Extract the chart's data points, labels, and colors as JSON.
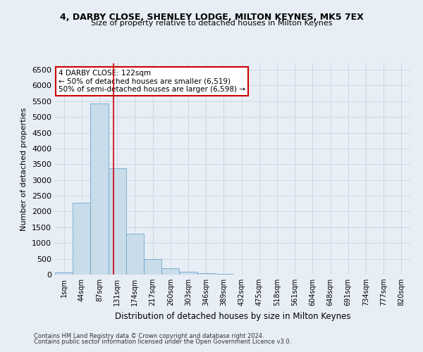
{
  "title1": "4, DARBY CLOSE, SHENLEY LODGE, MILTON KEYNES, MK5 7EX",
  "title2": "Size of property relative to detached houses in Milton Keynes",
  "xlabel": "Distribution of detached houses by size in Milton Keynes",
  "ylabel": "Number of detached properties",
  "footer1": "Contains HM Land Registry data © Crown copyright and database right 2024.",
  "footer2": "Contains public sector information licensed under the Open Government Licence v3.0.",
  "annotation_title": "4 DARBY CLOSE: 122sqm",
  "annotation_line1": "← 50% of detached houses are smaller (6,519)",
  "annotation_line2": "50% of semi-detached houses are larger (6,598) →",
  "property_size_sqm": 122,
  "bar_color": "#c9dcea",
  "bar_edge_color": "#5a9ec9",
  "vline_color": "#cc0000",
  "grid_color": "#c8d4e0",
  "bg_color": "#e8eef5",
  "annotation_box_color": "#ffffff",
  "annotation_box_edge": "#cc0000",
  "bin_edges": [
    1,
    44,
    87,
    131,
    174,
    217,
    260,
    303,
    346,
    389,
    432,
    475,
    518,
    561,
    604,
    648,
    691,
    734,
    777,
    820,
    863
  ],
  "bar_heights": [
    75,
    2270,
    5430,
    3380,
    1300,
    490,
    190,
    80,
    45,
    20,
    10,
    5,
    3,
    2,
    1,
    1,
    0,
    0,
    0,
    0
  ],
  "ylim": [
    0,
    6700
  ],
  "yticks": [
    0,
    500,
    1000,
    1500,
    2000,
    2500,
    3000,
    3500,
    4000,
    4500,
    5000,
    5500,
    6000,
    6500
  ]
}
